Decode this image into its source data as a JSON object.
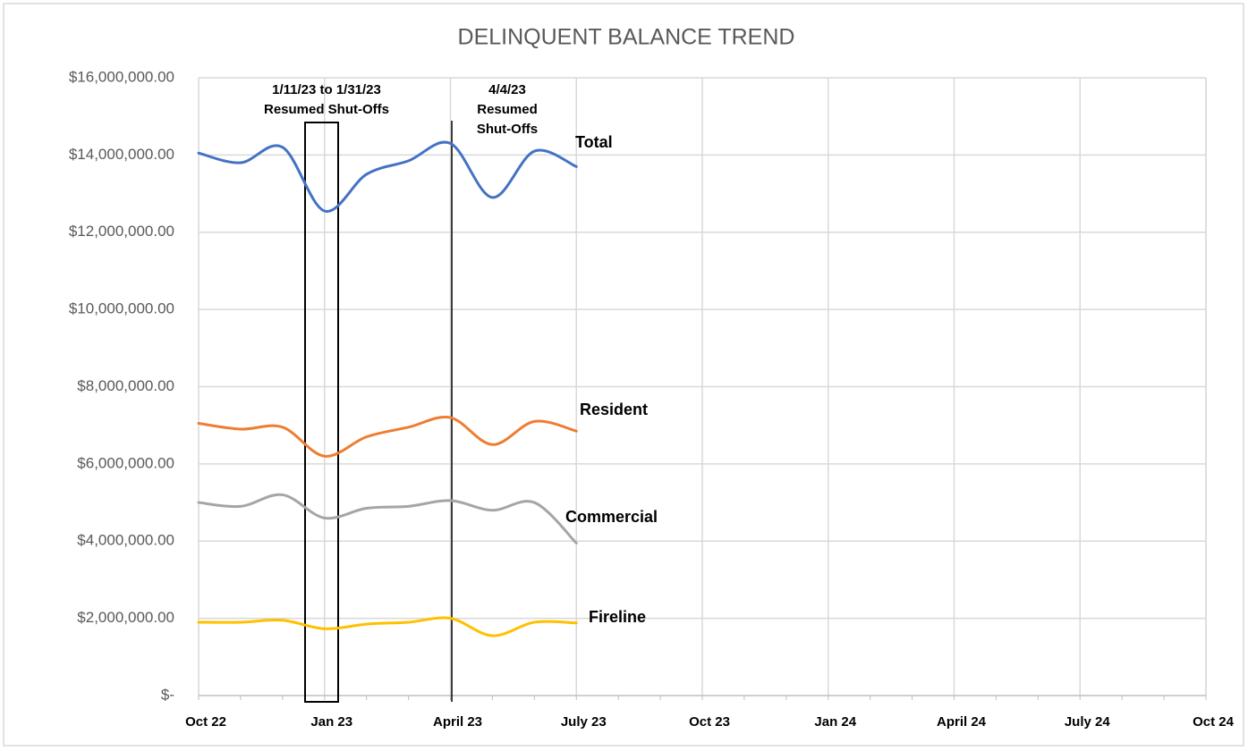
{
  "chart_data": {
    "type": "line",
    "title": "DELINQUENT BALANCE TREND",
    "categories": [
      "Oct 22",
      null,
      null,
      "Jan 23",
      null,
      null,
      "April 23",
      null,
      null,
      "July 23",
      null,
      null,
      "Oct 23",
      null,
      null,
      "Jan 24",
      null,
      null,
      "April 24",
      null,
      null,
      "July 24",
      null,
      null,
      "Oct  24"
    ],
    "series": [
      {
        "name": "Total",
        "color": "#4472c4",
        "values": [
          14050000,
          13800000,
          14200000,
          12550000,
          13500000,
          13850000,
          14300000,
          12900000,
          14100000,
          13700000,
          null,
          null,
          null,
          null,
          null,
          null,
          null,
          null,
          null,
          null,
          null,
          null,
          null,
          null,
          null
        ]
      },
      {
        "name": "Resident",
        "color": "#ed7d31",
        "values": [
          7050000,
          6900000,
          6950000,
          6200000,
          6700000,
          6950000,
          7200000,
          6500000,
          7100000,
          6850000,
          null,
          null,
          null,
          null,
          null,
          null,
          null,
          null,
          null,
          null,
          null,
          null,
          null,
          null,
          null
        ]
      },
      {
        "name": "Commercial",
        "color": "#a5a5a5",
        "values": [
          5000000,
          4900000,
          5200000,
          4600000,
          4850000,
          4900000,
          5050000,
          4800000,
          5000000,
          3950000,
          null,
          null,
          null,
          null,
          null,
          null,
          null,
          null,
          null,
          null,
          null,
          null,
          null,
          null,
          null
        ]
      },
      {
        "name": "Fireline",
        "color": "#ffc000",
        "values": [
          1900000,
          1900000,
          1950000,
          1730000,
          1850000,
          1900000,
          2000000,
          1550000,
          1900000,
          1880000,
          null,
          null,
          null,
          null,
          null,
          null,
          null,
          null,
          null,
          null,
          null,
          null,
          null,
          null,
          null
        ]
      }
    ],
    "ylim": [
      0,
      16000000
    ],
    "yticks": [
      {
        "value": 0,
        "label": "$-"
      },
      {
        "value": 2000000,
        "label": "$2,000,000.00"
      },
      {
        "value": 4000000,
        "label": "$4,000,000.00"
      },
      {
        "value": 6000000,
        "label": "$6,000,000.00"
      },
      {
        "value": 8000000,
        "label": "$8,000,000.00"
      },
      {
        "value": 10000000,
        "label": "$10,000,000.00"
      },
      {
        "value": 12000000,
        "label": "$12,000,000.00"
      },
      {
        "value": 14000000,
        "label": "$14,000,000.00"
      },
      {
        "value": 16000000,
        "label": "$16,000,000.00"
      }
    ],
    "grid": true,
    "annotations": [
      [
        "1/11/23 to 1/31/23",
        "Resumed Shut-Offs"
      ],
      [
        "4/4/23",
        "Resumed",
        "Shut-Offs"
      ]
    ]
  }
}
